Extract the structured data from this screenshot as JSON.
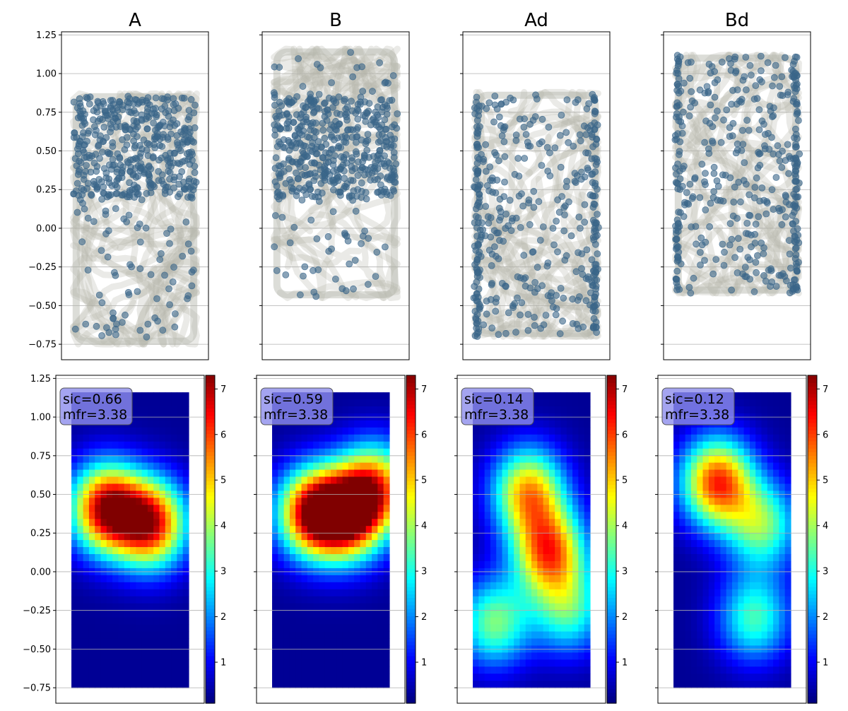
{
  "chart_data": [
    {
      "panel": "top",
      "type": "scatter",
      "titles": [
        "A",
        "B",
        "Ad",
        "Bd"
      ],
      "ylim": [
        -0.85,
        1.27
      ],
      "yticks": [
        -0.75,
        -0.5,
        -0.25,
        0.0,
        0.25,
        0.5,
        0.75,
        1.0,
        1.25
      ],
      "ytick_labels": [
        "−0.75",
        "−0.50",
        "−0.25",
        "0.00",
        "0.25",
        "0.50",
        "0.75",
        "1.00",
        "1.25"
      ],
      "grid": "horizontal",
      "colors": {
        "trajectory": "#b2b4a8",
        "spikes": "#3a6589"
      },
      "series": [
        {
          "x_range": [
            -0.42,
            0.42
          ],
          "y_range": [
            -0.75,
            0.87
          ],
          "spike_y_range": [
            -0.72,
            0.87
          ],
          "spike_density": "high 0.2–0.87, sparse below"
        },
        {
          "x_range": [
            -0.42,
            0.42
          ],
          "y_range": [
            -0.45,
            1.16
          ],
          "spike_y_range": [
            -0.45,
            1.15
          ],
          "spike_density": "high 0.2–0.87"
        },
        {
          "x_range": [
            -0.42,
            0.42
          ],
          "y_range": [
            -0.7,
            0.88
          ],
          "spike_y_range": [
            -0.7,
            0.88
          ],
          "spike_density": "uniform"
        },
        {
          "x_range": [
            -0.42,
            0.42
          ],
          "y_range": [
            -0.42,
            1.12
          ],
          "spike_y_range": [
            -0.42,
            1.12
          ],
          "spike_density": "uniform"
        }
      ]
    },
    {
      "panel": "bottom",
      "type": "heatmap",
      "colormap": "jet",
      "colorbar_range": [
        0.1,
        7.3
      ],
      "colorbar_ticks": [
        1,
        2,
        3,
        4,
        5,
        6,
        7
      ],
      "ylim": [
        -0.85,
        1.27
      ],
      "yticks": [
        -0.75,
        -0.5,
        -0.25,
        0.0,
        0.25,
        0.5,
        0.75,
        1.0,
        1.25
      ],
      "ytick_labels": [
        "−0.75",
        "−0.50",
        "−0.25",
        "0.00",
        "0.25",
        "0.50",
        "0.75",
        "1.00",
        "1.25"
      ],
      "grid": "horizontal",
      "extent_y": [
        -0.75,
        1.16
      ],
      "maps": [
        {
          "annotation": [
            "sic=0.66",
            "mfr=3.38"
          ],
          "peaks": [
            {
              "x": -0.16,
              "y": 0.41,
              "amp": 7.1
            },
            {
              "x": 0.14,
              "y": 0.31,
              "amp": 6.7
            }
          ]
        },
        {
          "annotation": [
            "sic=0.59",
            "mfr=3.38"
          ],
          "peaks": [
            {
              "x": -0.12,
              "y": 0.38,
              "amp": 6.9
            },
            {
              "x": 0.12,
              "y": 0.36,
              "amp": 6.5
            },
            {
              "x": 0.3,
              "y": 0.55,
              "amp": 5.3
            }
          ]
        },
        {
          "annotation": [
            "sic=0.14",
            "mfr=3.38"
          ],
          "peaks": [
            {
              "x": -0.02,
              "y": 0.52,
              "amp": 5.3
            },
            {
              "x": 0.12,
              "y": 0.13,
              "amp": 5.8
            },
            {
              "x": -0.25,
              "y": -0.33,
              "amp": 3.8
            },
            {
              "x": 0.25,
              "y": -0.25,
              "amp": 3.3
            }
          ]
        },
        {
          "annotation": [
            "sic=0.12",
            "mfr=3.38"
          ],
          "peaks": [
            {
              "x": -0.1,
              "y": 0.58,
              "amp": 6.3
            },
            {
              "x": 0.2,
              "y": 0.3,
              "amp": 3.8
            },
            {
              "x": 0.15,
              "y": -0.3,
              "amp": 3.4
            }
          ]
        }
      ]
    }
  ]
}
